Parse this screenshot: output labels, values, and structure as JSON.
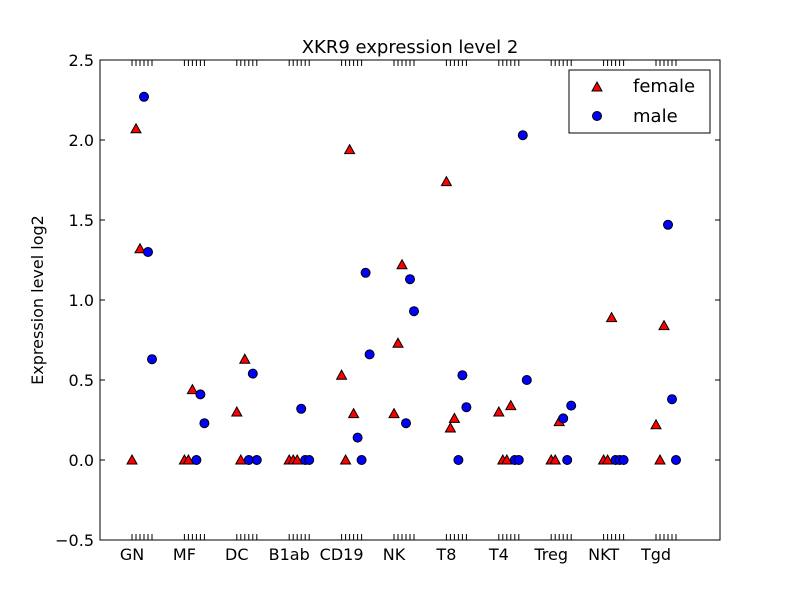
{
  "chart_data": {
    "type": "scatter",
    "title": "XKR9 expression level 2",
    "xlabel": "",
    "ylabel": "Expression level log2",
    "ylim": [
      -0.5,
      2.5
    ],
    "yticks": [
      "2.5",
      "2.0",
      "1.5",
      "1.0",
      "0.5",
      "0.0",
      "−0.5"
    ],
    "ytick_values": [
      2.5,
      2.0,
      1.5,
      1.0,
      0.5,
      0.0,
      -0.5
    ],
    "categories": [
      "GN",
      "MF",
      "DC",
      "B1ab",
      "CD19",
      "NK",
      "T8",
      "T4",
      "Treg",
      "NKT",
      "Tgd"
    ],
    "grid": false,
    "legend": {
      "position": "top-right"
    },
    "series": [
      {
        "name": "female",
        "marker": "triangle",
        "color": "#ff0000",
        "points": [
          {
            "group": 0,
            "slot": 0,
            "y": 0.0
          },
          {
            "group": 0,
            "slot": 1,
            "y": 2.07
          },
          {
            "group": 0,
            "slot": 2,
            "y": 1.32
          },
          {
            "group": 1,
            "slot": 0,
            "y": 0.0
          },
          {
            "group": 1,
            "slot": 1,
            "y": 0.0
          },
          {
            "group": 1,
            "slot": 2,
            "y": 0.44
          },
          {
            "group": 2,
            "slot": 0,
            "y": 0.3
          },
          {
            "group": 2,
            "slot": 1,
            "y": 0.0
          },
          {
            "group": 2,
            "slot": 2,
            "y": 0.63
          },
          {
            "group": 3,
            "slot": 0,
            "y": 0.0
          },
          {
            "group": 3,
            "slot": 1,
            "y": 0.0
          },
          {
            "group": 3,
            "slot": 2,
            "y": 0.0
          },
          {
            "group": 4,
            "slot": 0,
            "y": 0.53
          },
          {
            "group": 4,
            "slot": 1,
            "y": 0.0
          },
          {
            "group": 4,
            "slot": 2,
            "y": 1.94
          },
          {
            "group": 4,
            "slot": 3,
            "y": 0.29
          },
          {
            "group": 5,
            "slot": 0,
            "y": 0.29
          },
          {
            "group": 5,
            "slot": 1,
            "y": 0.73
          },
          {
            "group": 5,
            "slot": 2,
            "y": 1.22
          },
          {
            "group": 6,
            "slot": 0,
            "y": 1.74
          },
          {
            "group": 6,
            "slot": 1,
            "y": 0.2
          },
          {
            "group": 6,
            "slot": 2,
            "y": 0.26
          },
          {
            "group": 7,
            "slot": 0,
            "y": 0.3
          },
          {
            "group": 7,
            "slot": 1,
            "y": 0.0
          },
          {
            "group": 7,
            "slot": 2,
            "y": 0.0
          },
          {
            "group": 7,
            "slot": 3,
            "y": 0.34
          },
          {
            "group": 8,
            "slot": 0,
            "y": 0.0
          },
          {
            "group": 8,
            "slot": 1,
            "y": 0.0
          },
          {
            "group": 8,
            "slot": 2,
            "y": 0.24
          },
          {
            "group": 9,
            "slot": 0,
            "y": 0.0
          },
          {
            "group": 9,
            "slot": 1,
            "y": 0.0
          },
          {
            "group": 9,
            "slot": 2,
            "y": 0.89
          },
          {
            "group": 10,
            "slot": 0,
            "y": 0.22
          },
          {
            "group": 10,
            "slot": 1,
            "y": 0.0
          },
          {
            "group": 10,
            "slot": 2,
            "y": 0.84
          }
        ]
      },
      {
        "name": "male",
        "marker": "circle",
        "color": "#0000ff",
        "points": [
          {
            "group": 0,
            "slot": 3,
            "y": 2.27
          },
          {
            "group": 0,
            "slot": 4,
            "y": 1.3
          },
          {
            "group": 0,
            "slot": 5,
            "y": 0.63
          },
          {
            "group": 1,
            "slot": 3,
            "y": 0.0
          },
          {
            "group": 1,
            "slot": 4,
            "y": 0.41
          },
          {
            "group": 1,
            "slot": 5,
            "y": 0.23
          },
          {
            "group": 2,
            "slot": 3,
            "y": 0.0
          },
          {
            "group": 2,
            "slot": 4,
            "y": 0.54
          },
          {
            "group": 2,
            "slot": 5,
            "y": 0.0
          },
          {
            "group": 3,
            "slot": 3,
            "y": 0.32
          },
          {
            "group": 3,
            "slot": 4,
            "y": 0.0
          },
          {
            "group": 3,
            "slot": 5,
            "y": 0.0
          },
          {
            "group": 4,
            "slot": 4,
            "y": 0.14
          },
          {
            "group": 4,
            "slot": 5,
            "y": 0.0
          },
          {
            "group": 4,
            "slot": 6,
            "y": 1.17
          },
          {
            "group": 4,
            "slot": 7,
            "y": 0.66
          },
          {
            "group": 5,
            "slot": 3,
            "y": 0.23
          },
          {
            "group": 5,
            "slot": 4,
            "y": 1.13
          },
          {
            "group": 5,
            "slot": 5,
            "y": 0.93
          },
          {
            "group": 6,
            "slot": 3,
            "y": 0.0
          },
          {
            "group": 6,
            "slot": 4,
            "y": 0.53
          },
          {
            "group": 6,
            "slot": 5,
            "y": 0.33
          },
          {
            "group": 7,
            "slot": 4,
            "y": 0.0
          },
          {
            "group": 7,
            "slot": 5,
            "y": 0.0
          },
          {
            "group": 7,
            "slot": 6,
            "y": 2.03
          },
          {
            "group": 7,
            "slot": 7,
            "y": 0.5
          },
          {
            "group": 8,
            "slot": 3,
            "y": 0.26
          },
          {
            "group": 8,
            "slot": 4,
            "y": 0.0
          },
          {
            "group": 8,
            "slot": 5,
            "y": 0.34
          },
          {
            "group": 9,
            "slot": 3,
            "y": 0.0
          },
          {
            "group": 9,
            "slot": 4,
            "y": 0.0
          },
          {
            "group": 9,
            "slot": 5,
            "y": 0.0
          },
          {
            "group": 10,
            "slot": 3,
            "y": 1.47
          },
          {
            "group": 10,
            "slot": 4,
            "y": 0.38
          },
          {
            "group": 10,
            "slot": 5,
            "y": 0.0
          }
        ]
      }
    ]
  }
}
